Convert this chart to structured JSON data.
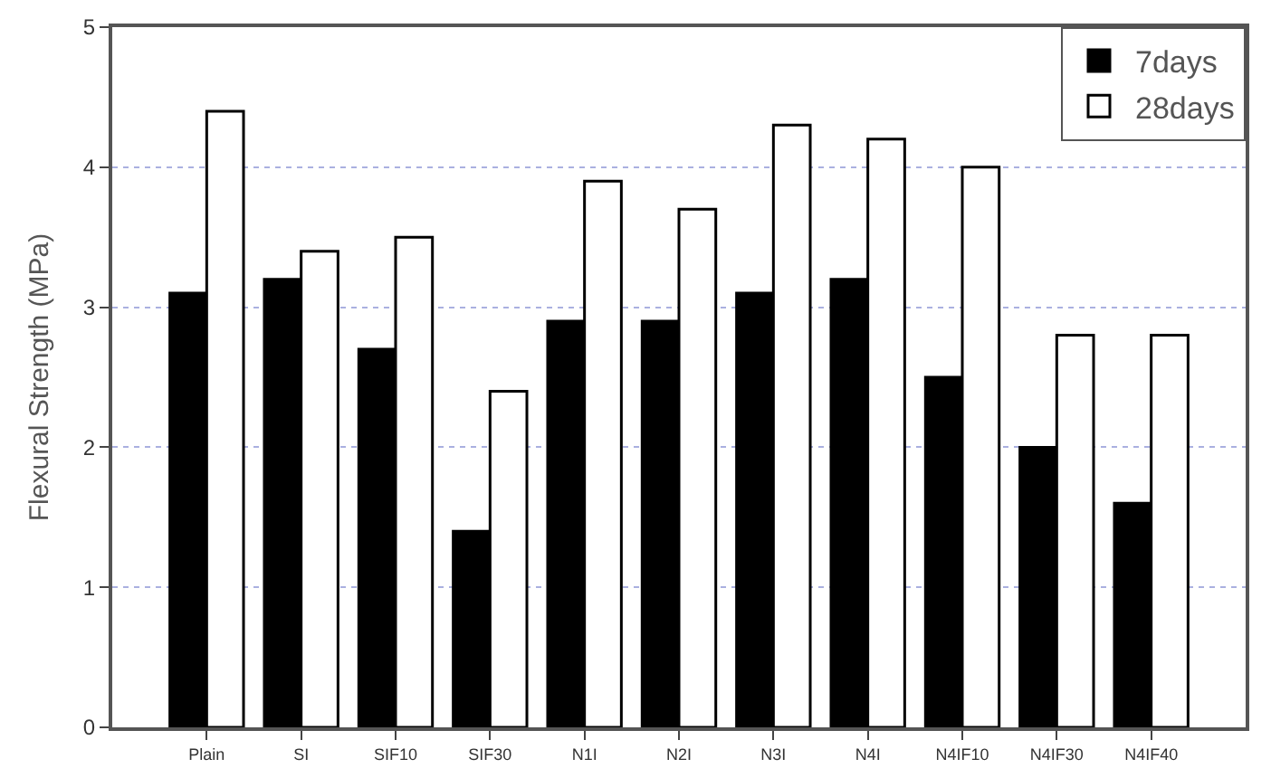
{
  "chart_data": {
    "type": "bar",
    "ylabel": "Flexural Strength (MPa)",
    "categories": [
      "Plain",
      "SI",
      "SIF10",
      "SIF30",
      "N1I",
      "N2I",
      "N3I",
      "N4I",
      "N4IF10",
      "N4IF30",
      "N4IF40"
    ],
    "series": [
      {
        "name": "7days",
        "color": "#000000",
        "values": [
          3.1,
          3.2,
          2.7,
          1.4,
          2.9,
          2.9,
          3.1,
          3.2,
          2.5,
          2.0,
          1.6
        ]
      },
      {
        "name": "28days",
        "color": "#ffffff",
        "values": [
          4.4,
          3.4,
          3.5,
          2.4,
          3.9,
          3.7,
          4.3,
          4.2,
          4.0,
          2.8,
          2.8
        ]
      }
    ],
    "ylim": [
      0,
      5
    ],
    "yticks": [
      0,
      1,
      2,
      3,
      4,
      5
    ],
    "grid": "y",
    "legend": "top right"
  }
}
